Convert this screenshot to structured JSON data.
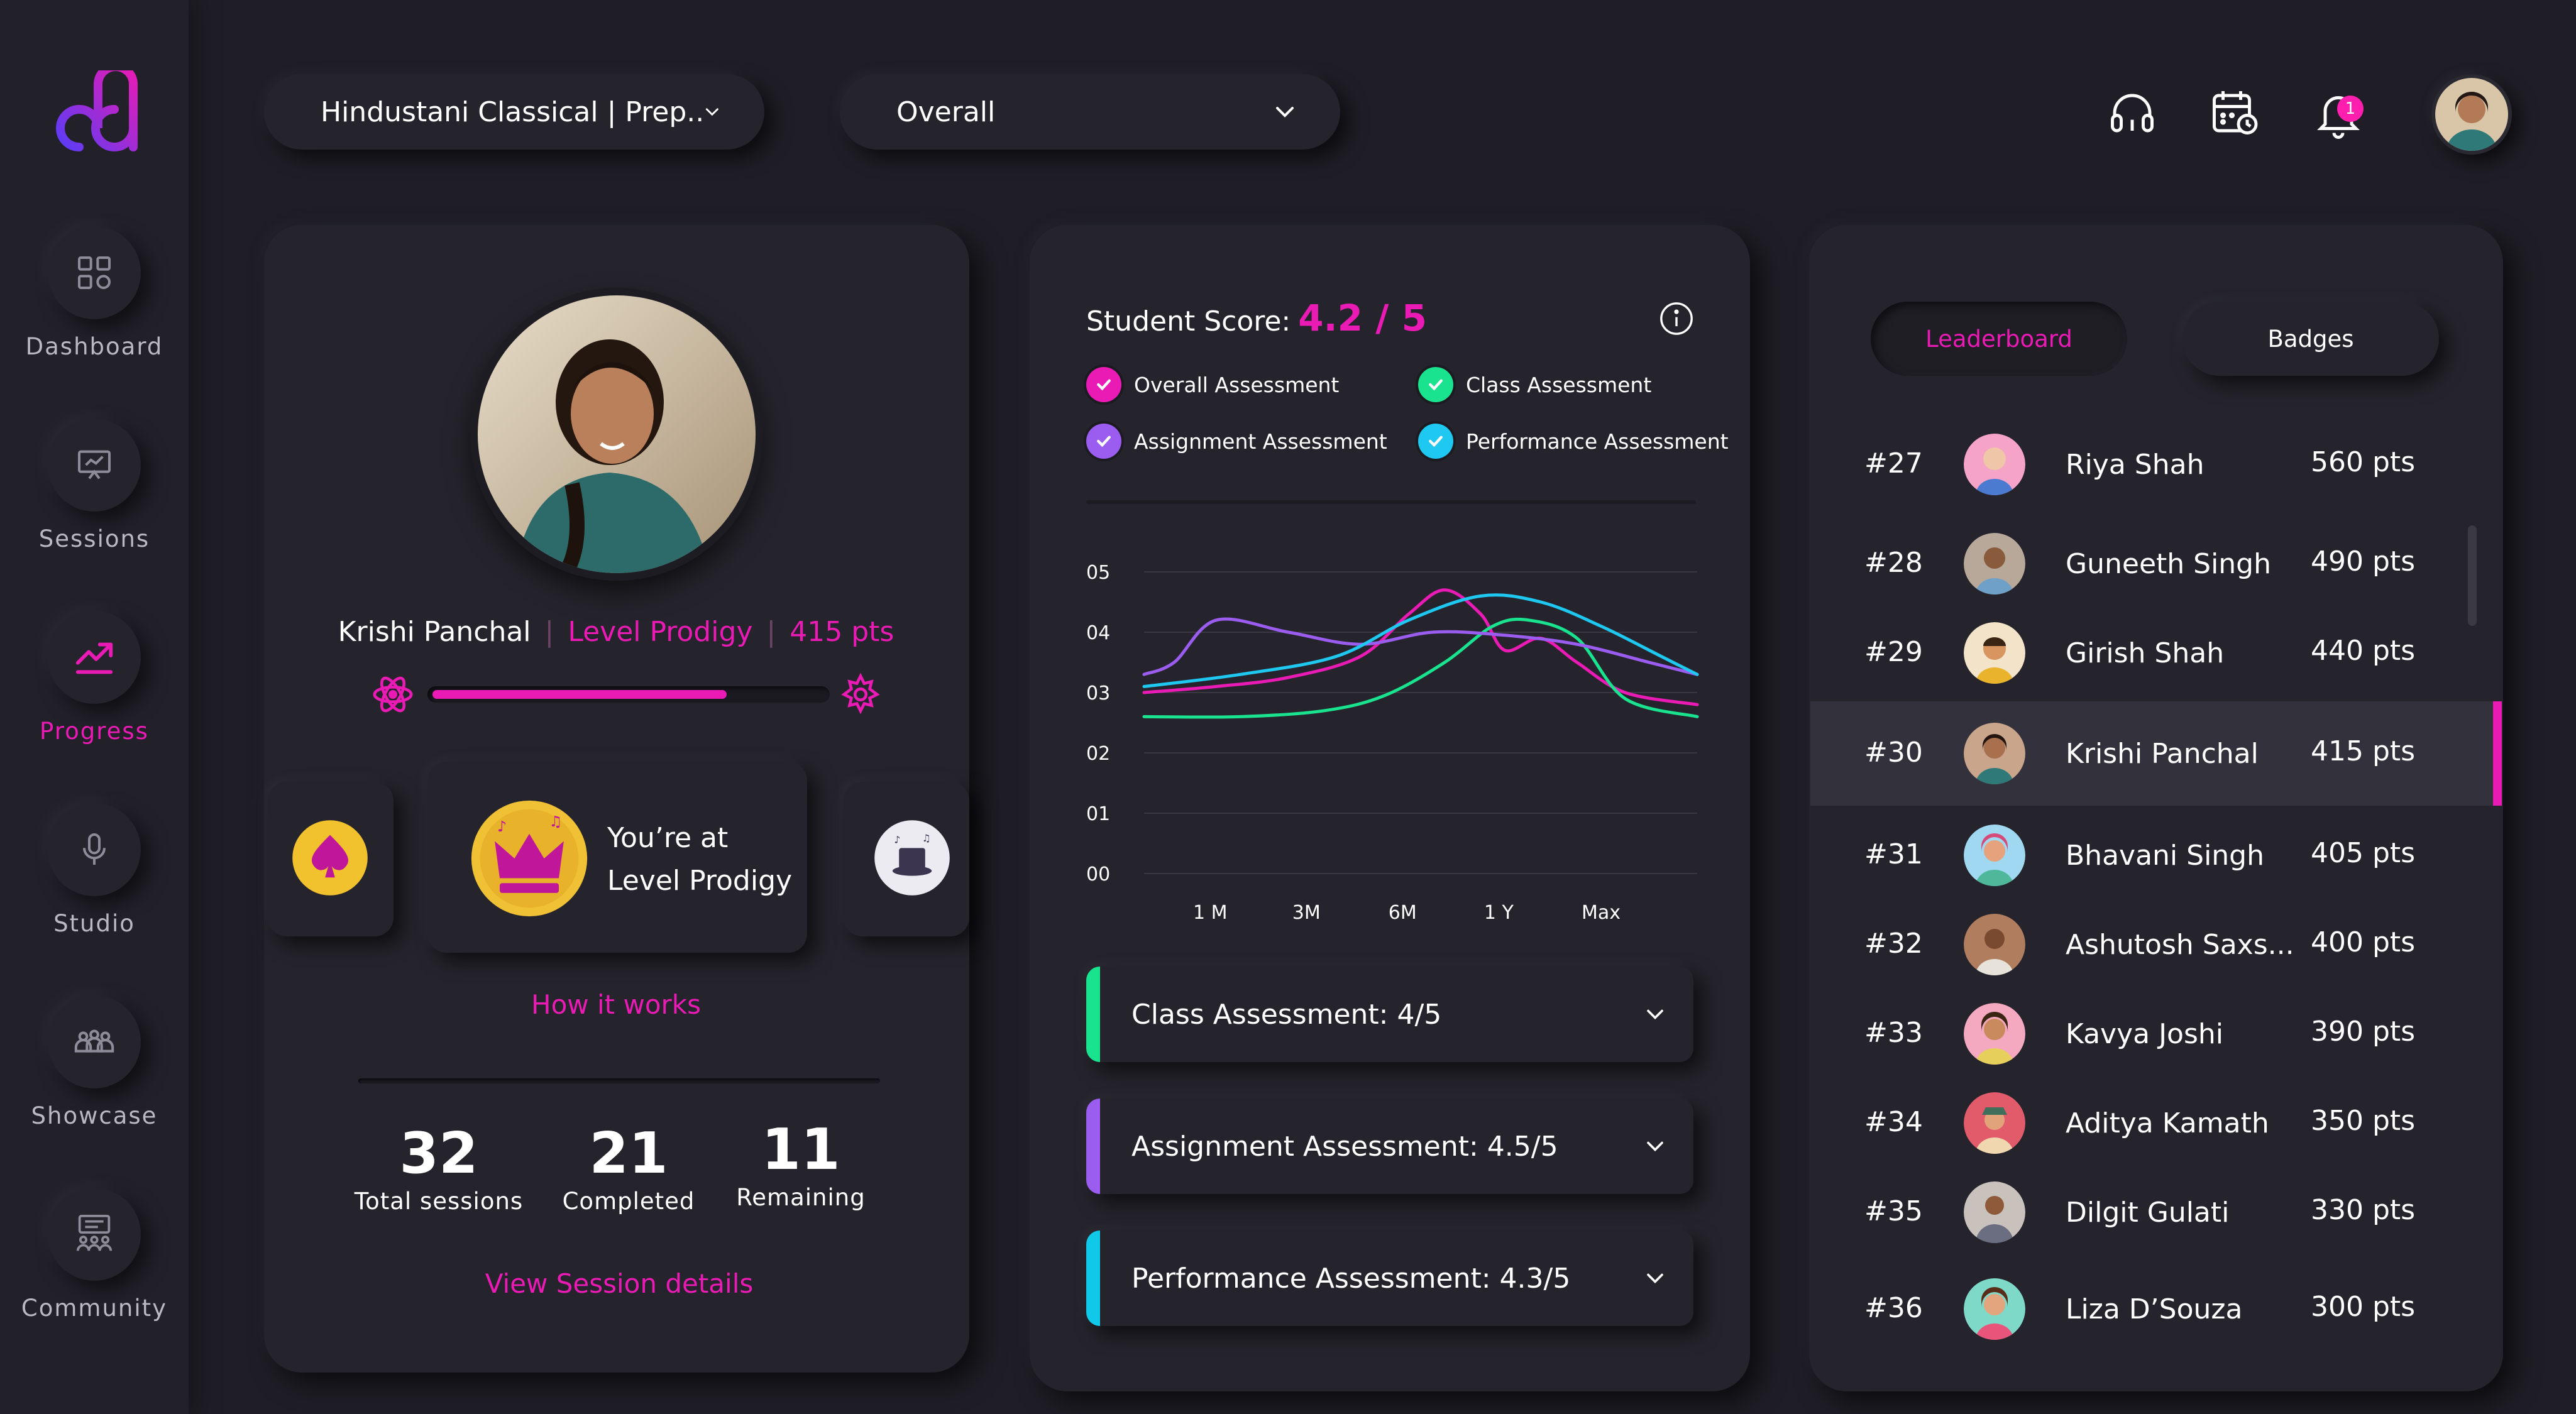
{
  "sidebar": {
    "items": [
      {
        "label": "Dashboard",
        "icon": "grid-icon",
        "active": false
      },
      {
        "label": "Sessions",
        "icon": "presentation-icon",
        "active": false
      },
      {
        "label": "Progress",
        "icon": "trending-up-icon",
        "active": true
      },
      {
        "label": "Studio",
        "icon": "microphone-icon",
        "active": false
      },
      {
        "label": "Showcase",
        "icon": "group-icon",
        "active": false
      },
      {
        "label": "Community",
        "icon": "community-board-icon",
        "active": false
      }
    ]
  },
  "topbar": {
    "course_select": "Hindustani Classical | Prep..",
    "period_select": "Overall",
    "notifications_count": "1"
  },
  "profile": {
    "name": "Krishi Panchal",
    "level": "Level Prodigy",
    "points": "415 pts",
    "level_progress": 0.75,
    "level_card_line1": "You’re at",
    "level_card_line2": "Level Prodigy",
    "how_it_works": "How it works",
    "stats": [
      {
        "value": "32",
        "label": "Total sessions"
      },
      {
        "value": "21",
        "label": "Completed"
      },
      {
        "value": "11",
        "label": "Remaining"
      }
    ],
    "view_details": "View Session details"
  },
  "score": {
    "title": "Student Score:",
    "value": "4.2 / 5",
    "legend": [
      {
        "label": "Overall Assessment",
        "color": "#e91bb4"
      },
      {
        "label": "Class Assessment",
        "color": "#19e38f"
      },
      {
        "label": "Assignment Assessment",
        "color": "#9b5cf0"
      },
      {
        "label": "Performance Assessment",
        "color": "#1ec8f0"
      }
    ],
    "accordions": [
      {
        "label": "Class Assessment: 4/5",
        "color": "#19e38f"
      },
      {
        "label": "Assignment Assessment: 4.5/5",
        "color": "#9b5cf0"
      },
      {
        "label": "Performance Assessment: 4.3/5",
        "color": "#10c8e8"
      }
    ]
  },
  "chart_data": {
    "type": "line",
    "categories": [
      "1 M",
      "3M",
      "6M",
      "1 Y",
      "Max"
    ],
    "y_ticks": [
      "00",
      "01",
      "02",
      "03",
      "04",
      "05"
    ],
    "ylim": [
      0,
      5
    ],
    "grid": true,
    "series": [
      {
        "name": "Overall Assessment",
        "color": "#e91bb4",
        "points": [
          [
            0.0,
            3.0
          ],
          [
            0.6,
            3.1
          ],
          [
            1.2,
            3.25
          ],
          [
            1.8,
            3.6
          ],
          [
            2.2,
            4.3
          ],
          [
            2.5,
            4.7
          ],
          [
            2.8,
            4.3
          ],
          [
            3.0,
            3.7
          ],
          [
            3.3,
            3.9
          ],
          [
            3.6,
            3.5
          ],
          [
            4.0,
            3.0
          ],
          [
            4.6,
            2.8
          ]
        ]
      },
      {
        "name": "Class Assessment",
        "color": "#19e38f",
        "points": [
          [
            0.0,
            2.6
          ],
          [
            0.8,
            2.6
          ],
          [
            1.5,
            2.7
          ],
          [
            2.0,
            2.95
          ],
          [
            2.5,
            3.5
          ],
          [
            2.9,
            4.1
          ],
          [
            3.2,
            4.2
          ],
          [
            3.6,
            3.9
          ],
          [
            4.0,
            2.9
          ],
          [
            4.6,
            2.6
          ]
        ]
      },
      {
        "name": "Assignment Assessment",
        "color": "#9b5cf0",
        "points": [
          [
            0.0,
            3.3
          ],
          [
            0.25,
            3.5
          ],
          [
            0.6,
            4.2
          ],
          [
            1.2,
            4.0
          ],
          [
            1.8,
            3.8
          ],
          [
            2.4,
            4.0
          ],
          [
            3.0,
            3.95
          ],
          [
            3.6,
            3.8
          ],
          [
            4.2,
            3.5
          ],
          [
            4.6,
            3.3
          ]
        ]
      },
      {
        "name": "Performance Assessment",
        "color": "#1ec8f0",
        "points": [
          [
            0.0,
            3.1
          ],
          [
            0.8,
            3.3
          ],
          [
            1.6,
            3.6
          ],
          [
            2.2,
            4.2
          ],
          [
            2.8,
            4.6
          ],
          [
            3.3,
            4.5
          ],
          [
            3.8,
            4.1
          ],
          [
            4.3,
            3.6
          ],
          [
            4.6,
            3.3
          ]
        ]
      }
    ]
  },
  "leaderboard": {
    "tabs": [
      "Leaderboard",
      "Badges"
    ],
    "active_tab": "Leaderboard",
    "rows": [
      {
        "rank": "#27",
        "name": "Riya Shah",
        "points": "560 pts",
        "avatar_color": "#f5a3c7"
      },
      {
        "rank": "#28",
        "name": "Guneeth Singh",
        "points": "490 pts",
        "avatar_color": "#b8a89a"
      },
      {
        "rank": "#29",
        "name": "Girish Shah",
        "points": "440 pts",
        "avatar_color": "#f3e3c8"
      },
      {
        "rank": "#30",
        "name": "Krishi Panchal",
        "points": "415 pts",
        "avatar_color": "#c9a58b",
        "highlight": true
      },
      {
        "rank": "#31",
        "name": "Bhavani Singh",
        "points": "405 pts",
        "avatar_color": "#9fd8f0"
      },
      {
        "rank": "#32",
        "name": "Ashutosh Saxs...",
        "points": "400 pts",
        "avatar_color": "#b07d5e"
      },
      {
        "rank": "#33",
        "name": "Kavya Joshi",
        "points": "390 pts",
        "avatar_color": "#f4a9c0"
      },
      {
        "rank": "#34",
        "name": "Aditya Kamath",
        "points": "350 pts",
        "avatar_color": "#e25b6a"
      },
      {
        "rank": "#35",
        "name": "Dilgit Gulati",
        "points": "330 pts",
        "avatar_color": "#c9c2bc"
      },
      {
        "rank": "#36",
        "name": "Liza D’Souza",
        "points": "300 pts",
        "avatar_color": "#7fd9c8"
      }
    ]
  }
}
